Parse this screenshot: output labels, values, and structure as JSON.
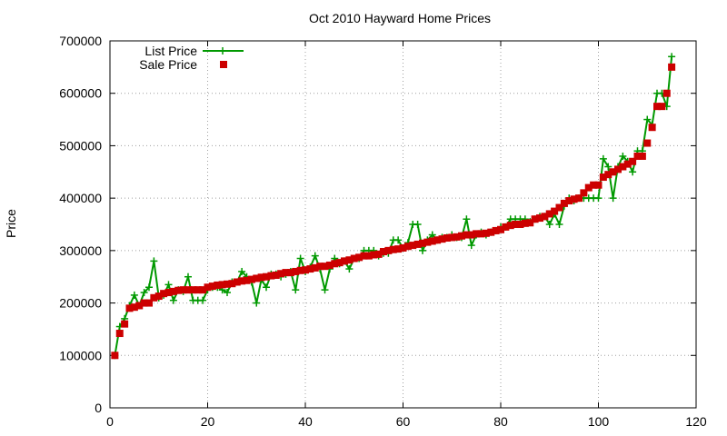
{
  "chart_data": {
    "type": "line",
    "title": "Oct 2010 Hayward Home Prices",
    "xlabel": "",
    "ylabel": "Price",
    "xlim": [
      0,
      120
    ],
    "ylim": [
      0,
      700000
    ],
    "xticks": [
      "0",
      "20",
      "40",
      "60",
      "80",
      "100",
      "120"
    ],
    "yticks": [
      "0",
      "100000",
      "200000",
      "300000",
      "400000",
      "500000",
      "600000",
      "700000"
    ],
    "grid": true,
    "legend_position": "top-left",
    "series": [
      {
        "name": "List Price",
        "style": "line+plus",
        "color": "#009900",
        "x": [
          1,
          2,
          3,
          4,
          5,
          6,
          7,
          8,
          9,
          10,
          11,
          12,
          13,
          14,
          15,
          16,
          17,
          18,
          19,
          20,
          21,
          22,
          23,
          24,
          25,
          26,
          27,
          28,
          29,
          30,
          31,
          32,
          33,
          34,
          35,
          36,
          37,
          38,
          39,
          40,
          41,
          42,
          43,
          44,
          45,
          46,
          47,
          48,
          49,
          50,
          51,
          52,
          53,
          54,
          55,
          56,
          57,
          58,
          59,
          60,
          61,
          62,
          63,
          64,
          65,
          66,
          67,
          68,
          69,
          70,
          71,
          72,
          73,
          74,
          75,
          76,
          77,
          78,
          79,
          80,
          81,
          82,
          83,
          84,
          85,
          86,
          87,
          88,
          89,
          90,
          91,
          92,
          93,
          94,
          95,
          96,
          97,
          98,
          99,
          100,
          101,
          102,
          103,
          104,
          105,
          106,
          107,
          108,
          109,
          110,
          111,
          112,
          113,
          114,
          115
        ],
        "values": [
          100000,
          155000,
          170000,
          195000,
          215000,
          195000,
          220000,
          230000,
          280000,
          210000,
          215000,
          235000,
          205000,
          225000,
          222000,
          250000,
          205000,
          205000,
          205000,
          225000,
          230000,
          230000,
          225000,
          220000,
          240000,
          240000,
          260000,
          250000,
          240000,
          200000,
          245000,
          230000,
          255000,
          255000,
          250000,
          255000,
          260000,
          225000,
          285000,
          260000,
          268000,
          290000,
          265000,
          225000,
          265000,
          285000,
          275000,
          280000,
          265000,
          285000,
          285000,
          300000,
          300000,
          300000,
          290000,
          295000,
          295000,
          320000,
          320000,
          305000,
          315000,
          350000,
          350000,
          300000,
          320000,
          330000,
          320000,
          325000,
          325000,
          330000,
          325000,
          325000,
          360000,
          310000,
          330000,
          335000,
          330000,
          335000,
          338000,
          345000,
          345000,
          360000,
          360000,
          360000,
          360000,
          355000,
          360000,
          365000,
          365000,
          350000,
          370000,
          350000,
          385000,
          400000,
          395000,
          400000,
          400000,
          400000,
          400000,
          400000,
          475000,
          460000,
          400000,
          460000,
          480000,
          470000,
          450000,
          490000,
          490000,
          550000,
          540000,
          600000,
          600000,
          575000,
          670000
        ]
      },
      {
        "name": "Sale Price",
        "style": "square",
        "color": "#cc0000",
        "x": [
          1,
          2,
          3,
          4,
          5,
          6,
          7,
          8,
          9,
          10,
          11,
          12,
          13,
          14,
          15,
          16,
          17,
          18,
          19,
          20,
          21,
          22,
          23,
          24,
          25,
          26,
          27,
          28,
          29,
          30,
          31,
          32,
          33,
          34,
          35,
          36,
          37,
          38,
          39,
          40,
          41,
          42,
          43,
          44,
          45,
          46,
          47,
          48,
          49,
          50,
          51,
          52,
          53,
          54,
          55,
          56,
          57,
          58,
          59,
          60,
          61,
          62,
          63,
          64,
          65,
          66,
          67,
          68,
          69,
          70,
          71,
          72,
          73,
          74,
          75,
          76,
          77,
          78,
          79,
          80,
          81,
          82,
          83,
          84,
          85,
          86,
          87,
          88,
          89,
          90,
          91,
          92,
          93,
          94,
          95,
          96,
          97,
          98,
          99,
          100,
          101,
          102,
          103,
          104,
          105,
          106,
          107,
          108,
          109,
          110,
          111,
          112,
          113,
          114,
          115
        ],
        "values": [
          100000,
          142000,
          160000,
          190000,
          192000,
          195000,
          200000,
          200000,
          210000,
          213000,
          218000,
          220000,
          222000,
          224000,
          225000,
          225000,
          225000,
          225000,
          225000,
          230000,
          232000,
          234000,
          235000,
          236000,
          237000,
          240000,
          242000,
          243000,
          245000,
          247000,
          249000,
          250000,
          252000,
          253000,
          256000,
          258000,
          258000,
          260000,
          262000,
          263000,
          265000,
          267000,
          270000,
          270000,
          272000,
          275000,
          277000,
          280000,
          282000,
          285000,
          287000,
          290000,
          290000,
          292000,
          293000,
          298000,
          300000,
          302000,
          303000,
          305000,
          308000,
          310000,
          312000,
          314000,
          316000,
          318000,
          320000,
          322000,
          324000,
          325000,
          326000,
          328000,
          330000,
          330000,
          332000,
          332000,
          333000,
          335000,
          338000,
          340000,
          345000,
          348000,
          350000,
          350000,
          352000,
          353000,
          360000,
          362000,
          365000,
          370000,
          375000,
          382000,
          390000,
          395000,
          398000,
          400000,
          410000,
          420000,
          425000,
          425000,
          440000,
          445000,
          450000,
          455000,
          460000,
          465000,
          470000,
          480000,
          480000,
          505000,
          535000,
          575000,
          575000,
          600000,
          650000
        ]
      }
    ]
  }
}
